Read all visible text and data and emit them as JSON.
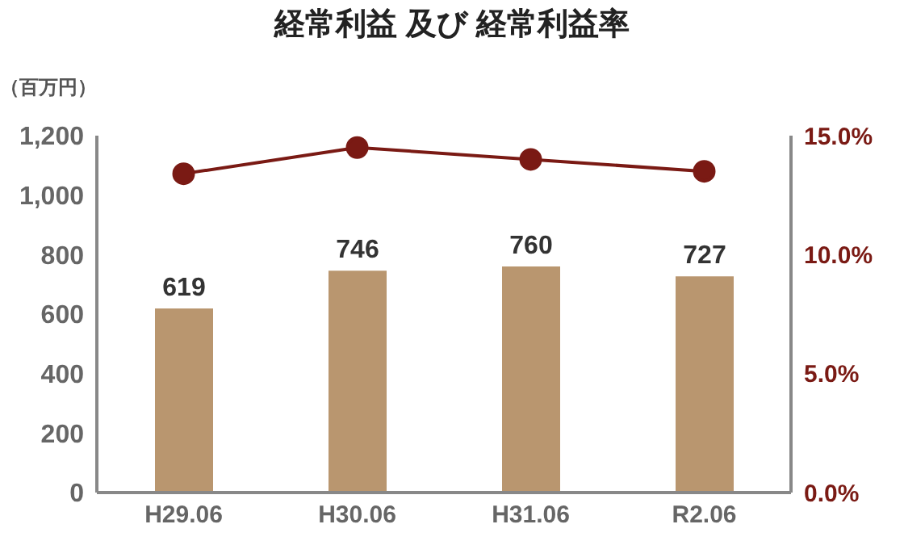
{
  "chart_data": {
    "type": "bar",
    "title": "経常利益 及び 経常利益率",
    "ylabel": "（百万円）",
    "categories": [
      "H29.06",
      "H30.06",
      "H31.06",
      "R2.06"
    ],
    "series": [
      {
        "color": "#b9966f",
        "values": [
          619,
          746,
          760,
          727
        ],
        "value_labels": [
          "619",
          "746",
          "760",
          "727"
        ]
      },
      {
        "type": "line",
        "axis": "y2",
        "color": "#7a1a14",
        "values": [
          13.4,
          14.5,
          14.0,
          13.5
        ]
      }
    ],
    "ylim": [
      0,
      1200
    ],
    "yticks": [
      {
        "value": 0,
        "label": "0"
      },
      {
        "value": 200,
        "label": "200"
      },
      {
        "value": 400,
        "label": "400"
      },
      {
        "value": 600,
        "label": "600"
      },
      {
        "value": 800,
        "label": "800"
      },
      {
        "value": 1000,
        "label": "1,000"
      },
      {
        "value": 1200,
        "label": "1,200"
      }
    ],
    "y2lim": [
      0,
      15
    ],
    "y2ticks": [
      {
        "value": 0,
        "label": "0.0%"
      },
      {
        "value": 5,
        "label": "5.0%"
      },
      {
        "value": 10,
        "label": "10.0%"
      },
      {
        "value": 15,
        "label": "15.0%"
      }
    ],
    "marker": "circle"
  }
}
